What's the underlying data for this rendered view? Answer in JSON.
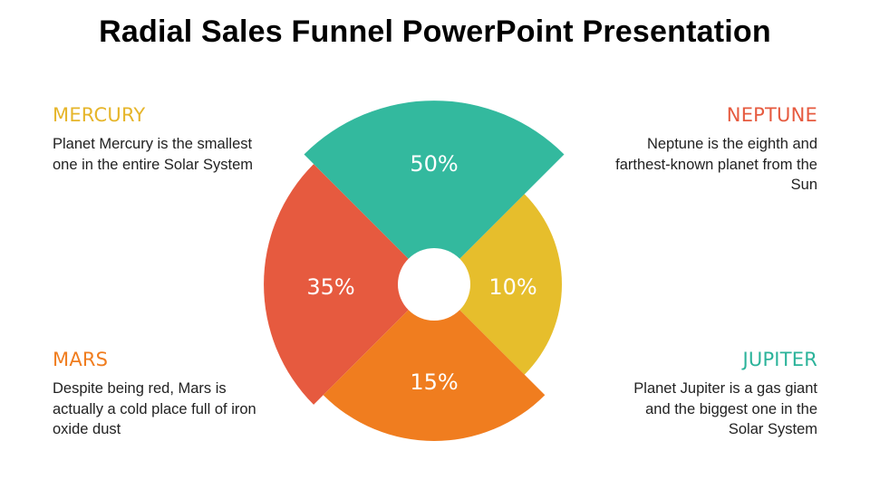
{
  "title": "Radial Sales Funnel PowerPoint Presentation",
  "blocks": {
    "mercury": {
      "heading": "MERCURY",
      "text": "Planet Mercury is the smallest one in the entire Solar System",
      "color": "#E6B52A"
    },
    "neptune": {
      "heading": "NEPTUNE",
      "text": "Neptune is the eighth and farthest-known planet from the Sun",
      "color": "#E65A3F"
    },
    "mars": {
      "heading": "MARS",
      "text": "Despite being red, Mars is actually a cold place full of iron oxide dust",
      "color": "#F07D1F"
    },
    "jupiter": {
      "heading": "JUPITER",
      "text": "Planet Jupiter is a gas giant and the biggest one in the Solar System",
      "color": "#2BB39A"
    }
  },
  "funnel": {
    "segments": [
      {
        "label": "50%",
        "value": 50,
        "color": "#33B99E"
      },
      {
        "label": "10%",
        "value": 10,
        "color": "#E6BE2C"
      },
      {
        "label": "15%",
        "value": 15,
        "color": "#F07D1F"
      },
      {
        "label": "35%",
        "value": 35,
        "color": "#E65A3F"
      }
    ]
  }
}
